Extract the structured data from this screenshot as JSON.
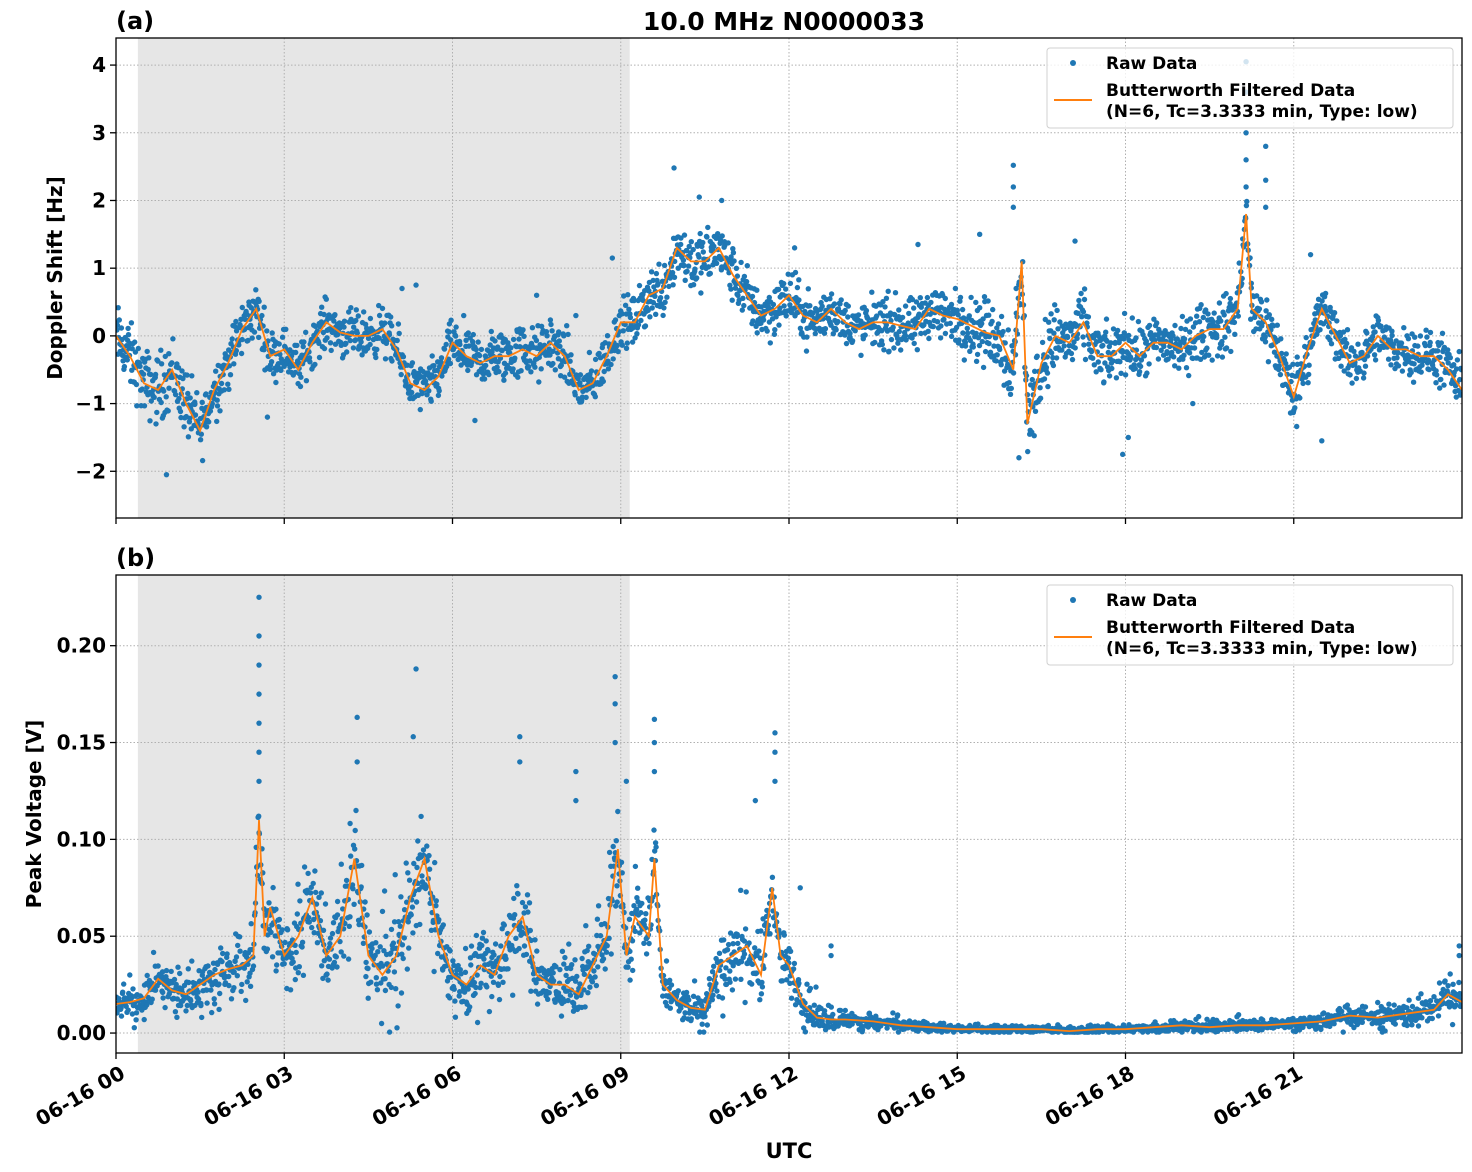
{
  "figure": {
    "title": "10.0 MHz N0000033",
    "xlabel": "UTC"
  },
  "colors": {
    "raw": "#1f77b4",
    "filtered": "#ff7f0e",
    "shade": "#e6e6e6",
    "grid": "#b0b0b0"
  },
  "legend": {
    "raw_label": "Raw Data",
    "filtered_label_line1": "Butterworth Filtered Data",
    "filtered_label_line2": "(N=6, Tc=3.3333 min, Type: low)",
    "placement": "upper right"
  },
  "chart_data": [
    {
      "type": "scatter+line",
      "panel_label": "(a)",
      "ylabel": "Doppler Shift [Hz]",
      "xlim_hours": [
        0,
        24
      ],
      "ylim": [
        -2.69,
        4.4
      ],
      "yticks": [
        -2,
        -1,
        0,
        1,
        2,
        3,
        4
      ],
      "ytick_labels": [
        "−2",
        "−1",
        "0",
        "1",
        "2",
        "3",
        "4"
      ],
      "xtick_hours": [
        0,
        3,
        6,
        9,
        12,
        15,
        18,
        21
      ],
      "grid": true,
      "shaded_interval_hours": [
        0.39,
        9.16
      ],
      "filtered": {
        "x": [
          0,
          0.25,
          0.5,
          0.75,
          1,
          1.25,
          1.5,
          1.75,
          2,
          2.25,
          2.5,
          2.75,
          3,
          3.25,
          3.5,
          3.75,
          4,
          4.25,
          4.5,
          4.75,
          5,
          5.25,
          5.5,
          5.75,
          6,
          6.25,
          6.5,
          6.75,
          7,
          7.25,
          7.5,
          7.75,
          8,
          8.25,
          8.5,
          8.75,
          9,
          9.25,
          9.5,
          9.75,
          10,
          10.25,
          10.5,
          10.75,
          11,
          11.25,
          11.5,
          11.75,
          12,
          12.25,
          12.5,
          12.75,
          13,
          13.25,
          13.5,
          13.75,
          14,
          14.25,
          14.5,
          14.75,
          15,
          15.25,
          15.5,
          15.75,
          16,
          16.15,
          16.25,
          16.5,
          16.75,
          17,
          17.25,
          17.5,
          17.75,
          18,
          18.25,
          18.5,
          18.75,
          19,
          19.25,
          19.5,
          19.75,
          20,
          20.15,
          20.25,
          20.5,
          20.75,
          21,
          21.25,
          21.5,
          21.75,
          22,
          22.25,
          22.5,
          22.75,
          23,
          23.25,
          23.5,
          23.75,
          24
        ],
        "y": [
          0.0,
          -0.3,
          -0.7,
          -0.8,
          -0.5,
          -1.0,
          -1.4,
          -0.8,
          -0.4,
          0.1,
          0.4,
          -0.3,
          -0.2,
          -0.5,
          -0.1,
          0.2,
          0.05,
          0.0,
          0.0,
          0.1,
          -0.2,
          -0.7,
          -0.8,
          -0.6,
          -0.1,
          -0.3,
          -0.4,
          -0.3,
          -0.3,
          -0.2,
          -0.3,
          -0.1,
          -0.3,
          -0.8,
          -0.7,
          -0.3,
          0.2,
          0.2,
          0.6,
          0.7,
          1.3,
          1.1,
          1.1,
          1.3,
          0.9,
          0.6,
          0.3,
          0.4,
          0.6,
          0.3,
          0.2,
          0.4,
          0.2,
          0.1,
          0.2,
          0.2,
          0.15,
          0.1,
          0.4,
          0.3,
          0.25,
          0.15,
          0.05,
          0.0,
          -0.5,
          1.1,
          -1.3,
          -0.4,
          0.0,
          -0.1,
          0.2,
          -0.3,
          -0.3,
          -0.1,
          -0.3,
          -0.1,
          -0.1,
          -0.2,
          0.0,
          0.1,
          0.1,
          0.4,
          1.8,
          0.4,
          0.2,
          -0.3,
          -0.9,
          -0.2,
          0.4,
          0.0,
          -0.4,
          -0.3,
          0.0,
          -0.2,
          -0.2,
          -0.3,
          -0.3,
          -0.5,
          -0.8
        ]
      },
      "raw_spread": {
        "x": [
          0,
          1,
          2,
          3,
          4,
          5,
          6,
          7,
          8,
          9,
          10,
          11,
          12,
          13,
          14,
          15,
          16,
          17,
          18,
          19,
          20,
          21,
          22,
          23,
          24
        ],
        "halfwidth": [
          0.4,
          0.45,
          0.35,
          0.3,
          0.3,
          0.3,
          0.3,
          0.35,
          0.35,
          0.3,
          0.4,
          0.35,
          0.35,
          0.3,
          0.35,
          0.35,
          0.5,
          0.4,
          0.35,
          0.35,
          0.4,
          0.4,
          0.3,
          0.3,
          0.35
        ]
      },
      "raw_outliers": [
        [
          0.9,
          -2.05
        ],
        [
          2.7,
          -1.2
        ],
        [
          5.1,
          0.7
        ],
        [
          5.35,
          0.75
        ],
        [
          6.2,
          0.3
        ],
        [
          6.4,
          -1.25
        ],
        [
          7.5,
          0.6
        ],
        [
          8.2,
          0.3
        ],
        [
          8.85,
          1.15
        ],
        [
          9.95,
          2.48
        ],
        [
          10.4,
          2.05
        ],
        [
          10.8,
          2.0
        ],
        [
          12.1,
          1.3
        ],
        [
          14.3,
          1.35
        ],
        [
          15.4,
          1.5
        ],
        [
          16.0,
          2.52
        ],
        [
          16.0,
          2.2
        ],
        [
          16.0,
          1.9
        ],
        [
          16.1,
          -1.8
        ],
        [
          16.05,
          0.7
        ],
        [
          17.1,
          1.4
        ],
        [
          17.95,
          -1.75
        ],
        [
          18.05,
          -1.5
        ],
        [
          19.2,
          -1.0
        ],
        [
          20.15,
          4.05
        ],
        [
          20.15,
          3.6
        ],
        [
          20.15,
          3.0
        ],
        [
          20.15,
          2.6
        ],
        [
          20.15,
          2.2
        ],
        [
          20.5,
          2.8
        ],
        [
          20.5,
          2.3
        ],
        [
          20.5,
          1.9
        ],
        [
          21.5,
          -1.55
        ],
        [
          21.3,
          1.2
        ]
      ]
    },
    {
      "type": "scatter+line",
      "panel_label": "(b)",
      "ylabel": "Peak Voltage [V]",
      "xlim_hours": [
        0,
        24
      ],
      "ylim": [
        -0.0103,
        0.2365
      ],
      "yticks": [
        0,
        0.05,
        0.1,
        0.15,
        0.2
      ],
      "ytick_labels": [
        "0.00",
        "0.05",
        "0.10",
        "0.15",
        "0.20"
      ],
      "xtick_hours": [
        0,
        3,
        6,
        9,
        12,
        15,
        18,
        21
      ],
      "xtick_labels": [
        "06-16 00",
        "06-16 03",
        "06-16 06",
        "06-16 09",
        "06-16 12",
        "06-16 15",
        "06-16 18",
        "06-16 21"
      ],
      "grid": true,
      "shaded_interval_hours": [
        0.39,
        9.16
      ],
      "filtered": {
        "x": [
          0,
          0.25,
          0.5,
          0.75,
          1,
          1.25,
          1.5,
          1.75,
          2,
          2.25,
          2.45,
          2.55,
          2.65,
          2.75,
          3,
          3.25,
          3.5,
          3.75,
          4,
          4.25,
          4.5,
          4.75,
          5,
          5.25,
          5.5,
          5.75,
          6,
          6.25,
          6.5,
          6.75,
          7,
          7.25,
          7.5,
          7.75,
          8,
          8.25,
          8.5,
          8.75,
          8.95,
          9.1,
          9.25,
          9.5,
          9.6,
          9.75,
          10,
          10.25,
          10.5,
          10.75,
          11,
          11.25,
          11.5,
          11.7,
          11.85,
          12,
          12.25,
          12.5,
          12.75,
          13,
          13.5,
          14,
          14.5,
          15,
          15.5,
          16,
          16.5,
          17,
          17.5,
          18,
          18.5,
          19,
          19.5,
          20,
          20.5,
          21,
          21.5,
          22,
          22.5,
          23,
          23.5,
          23.75,
          24
        ],
        "y": [
          0.015,
          0.016,
          0.018,
          0.028,
          0.022,
          0.02,
          0.025,
          0.03,
          0.033,
          0.035,
          0.04,
          0.11,
          0.05,
          0.065,
          0.04,
          0.05,
          0.07,
          0.04,
          0.05,
          0.09,
          0.04,
          0.03,
          0.04,
          0.07,
          0.09,
          0.05,
          0.03,
          0.025,
          0.035,
          0.03,
          0.05,
          0.06,
          0.03,
          0.025,
          0.025,
          0.02,
          0.035,
          0.05,
          0.095,
          0.04,
          0.06,
          0.05,
          0.09,
          0.025,
          0.017,
          0.013,
          0.012,
          0.035,
          0.04,
          0.045,
          0.03,
          0.075,
          0.04,
          0.035,
          0.015,
          0.008,
          0.007,
          0.007,
          0.006,
          0.004,
          0.003,
          0.002,
          0.002,
          0.002,
          0.002,
          0.001,
          0.002,
          0.002,
          0.003,
          0.004,
          0.003,
          0.004,
          0.004,
          0.005,
          0.006,
          0.009,
          0.008,
          0.01,
          0.012,
          0.02,
          0.016
        ]
      },
      "raw_spread": {
        "x": [
          0,
          1,
          2,
          3,
          4,
          5,
          6,
          7,
          8,
          9,
          10,
          11,
          12,
          13,
          14,
          15,
          16,
          17,
          18,
          19,
          20,
          21,
          22,
          23,
          24
        ],
        "halfwidth": [
          0.008,
          0.01,
          0.014,
          0.02,
          0.022,
          0.025,
          0.016,
          0.02,
          0.018,
          0.025,
          0.006,
          0.02,
          0.012,
          0.004,
          0.003,
          0.002,
          0.002,
          0.002,
          0.002,
          0.003,
          0.003,
          0.003,
          0.005,
          0.006,
          0.01
        ]
      },
      "raw_outliers": [
        [
          2.55,
          0.225
        ],
        [
          2.55,
          0.205
        ],
        [
          2.55,
          0.19
        ],
        [
          2.55,
          0.175
        ],
        [
          2.55,
          0.16
        ],
        [
          2.55,
          0.145
        ],
        [
          2.55,
          0.13
        ],
        [
          4.3,
          0.163
        ],
        [
          4.3,
          0.14
        ],
        [
          5.35,
          0.188
        ],
        [
          5.3,
          0.153
        ],
        [
          7.2,
          0.153
        ],
        [
          7.2,
          0.14
        ],
        [
          8.2,
          0.135
        ],
        [
          8.2,
          0.12
        ],
        [
          8.9,
          0.184
        ],
        [
          8.9,
          0.17
        ],
        [
          8.9,
          0.15
        ],
        [
          9.1,
          0.13
        ],
        [
          9.6,
          0.162
        ],
        [
          9.6,
          0.15
        ],
        [
          9.6,
          0.135
        ],
        [
          11.4,
          0.12
        ],
        [
          11.75,
          0.155
        ],
        [
          11.75,
          0.145
        ],
        [
          11.75,
          0.13
        ],
        [
          12.2,
          0.075
        ],
        [
          12.75,
          0.045
        ],
        [
          12.75,
          0.04
        ],
        [
          23.95,
          0.045
        ],
        [
          23.95,
          0.04
        ]
      ]
    }
  ]
}
